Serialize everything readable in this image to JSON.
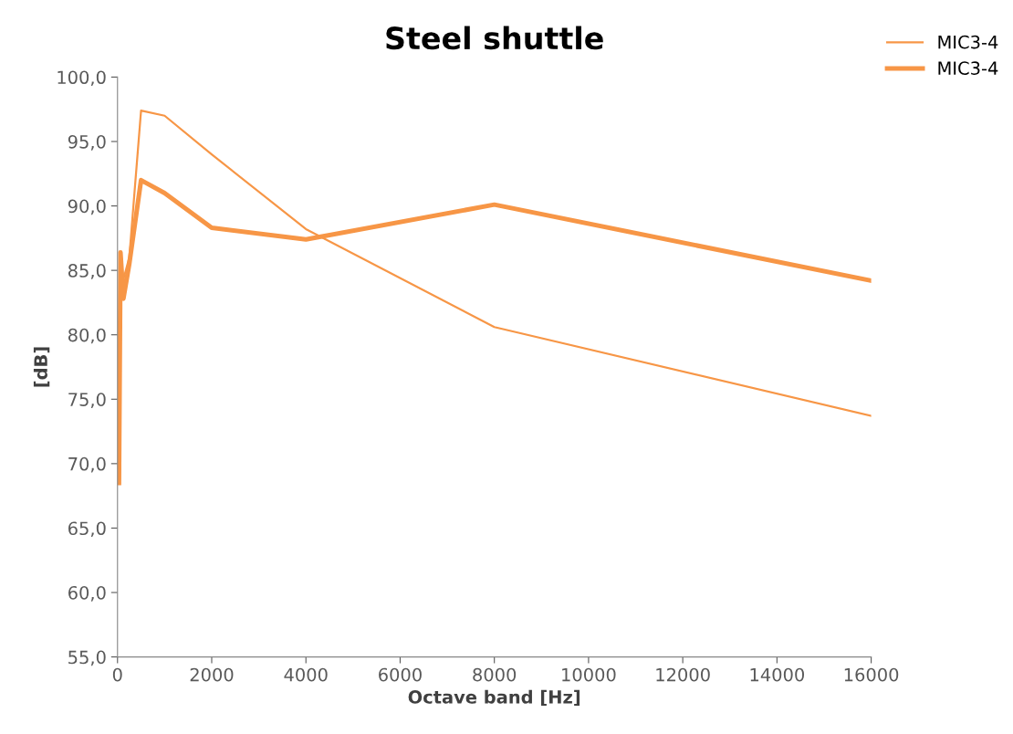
{
  "chart_data": {
    "type": "line",
    "title": "Steel shuttle",
    "xlabel": "Octave band [Hz]",
    "ylabel": "[dB]",
    "x": [
      31.5,
      63,
      125,
      250,
      500,
      1000,
      2000,
      4000,
      8000,
      16000
    ],
    "series": [
      {
        "name": "MIC3-4",
        "color": "#f79646",
        "values": [
          68.5,
          84.0,
          84.3,
          86.0,
          97.4,
          97.0,
          94.0,
          88.2,
          80.6,
          73.7
        ]
      },
      {
        "name": "MIC3-4",
        "color": "#f79646",
        "values": [
          68.5,
          86.4,
          82.8,
          85.5,
          92.0,
          91.0,
          88.3,
          87.4,
          90.1,
          84.2
        ]
      }
    ],
    "xlim": [
      0,
      16000
    ],
    "xticks": [
      0,
      2000,
      4000,
      6000,
      8000,
      10000,
      12000,
      14000,
      16000
    ],
    "ylim": [
      55,
      100
    ],
    "yticks": [
      {
        "value": 55,
        "label": "55,0"
      },
      {
        "value": 60,
        "label": "60,0"
      },
      {
        "value": 65,
        "label": "65,0"
      },
      {
        "value": 70,
        "label": "70,0"
      },
      {
        "value": 75,
        "label": "75,0"
      },
      {
        "value": 80,
        "label": "80,0"
      },
      {
        "value": 85,
        "label": "85,0"
      },
      {
        "value": 90,
        "label": "90,0"
      },
      {
        "value": 95,
        "label": "95,0"
      },
      {
        "value": 100,
        "label": "100,0"
      }
    ],
    "grid": false,
    "legend": "top right",
    "marker": "none",
    "line_style": "solid"
  }
}
